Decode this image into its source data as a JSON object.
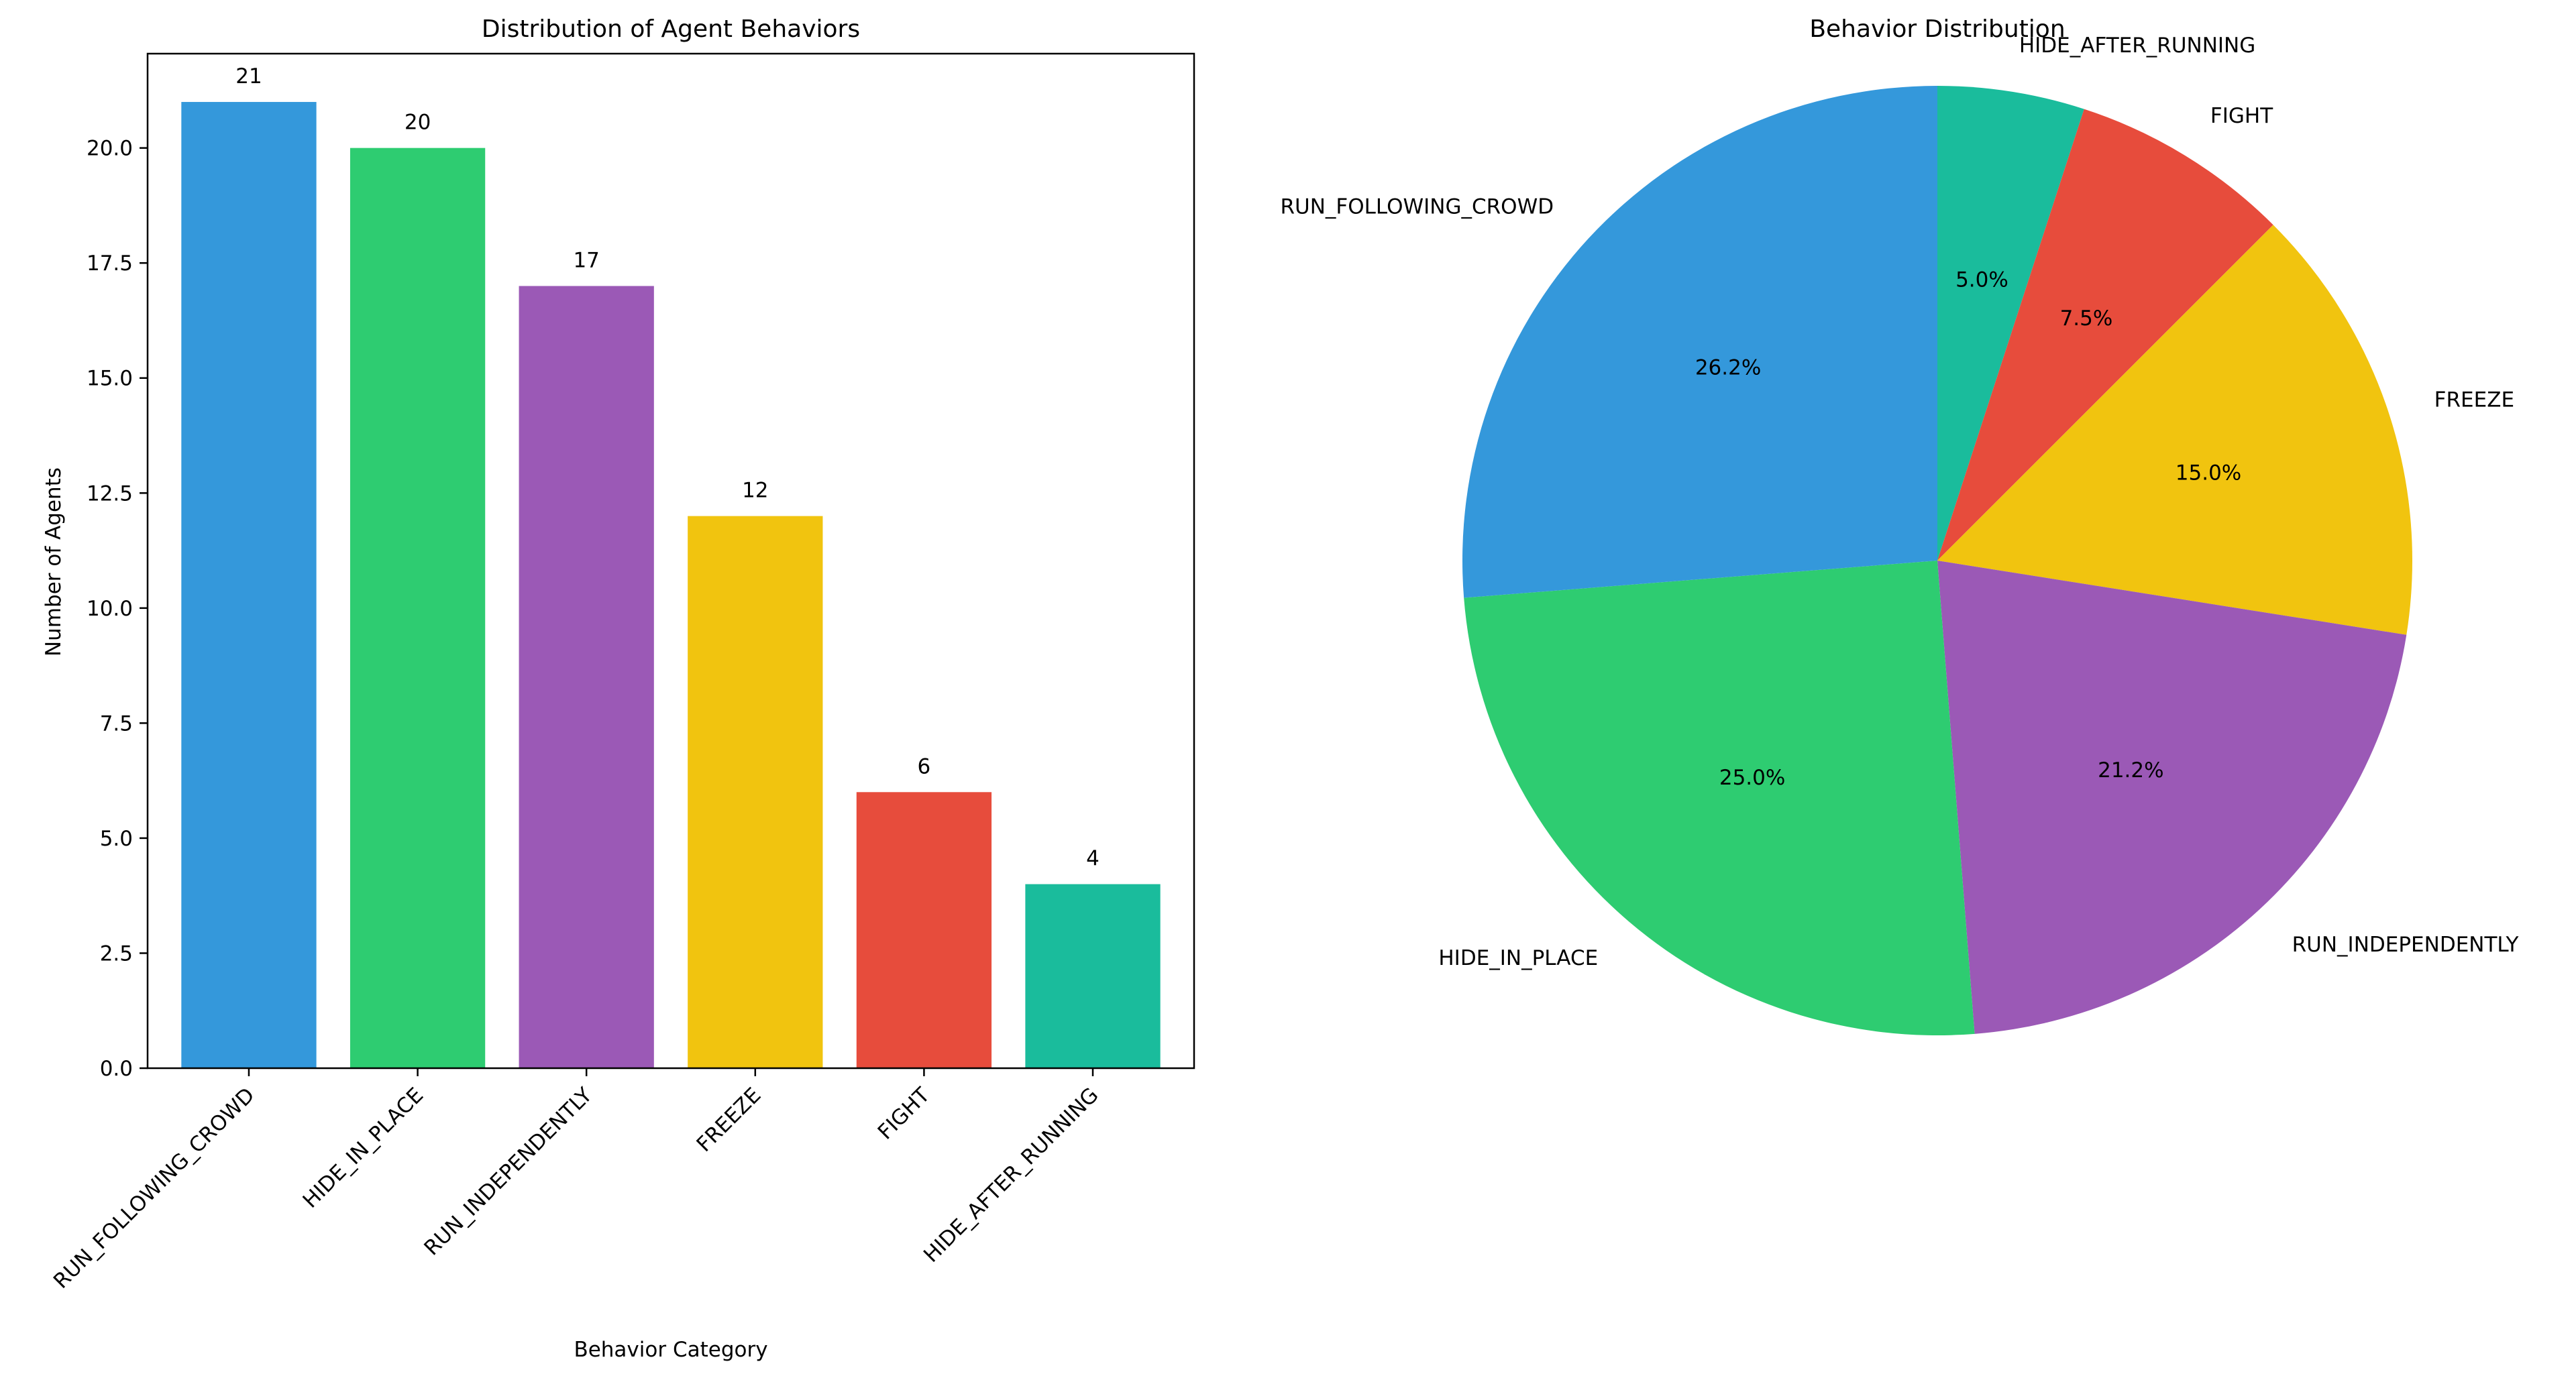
{
  "chart_data": [
    {
      "type": "bar",
      "title": "Distribution of Agent Behaviors",
      "xlabel": "Behavior Category",
      "ylabel": "Number of Agents",
      "categories": [
        "RUN_FOLLOWING_CROWD",
        "HIDE_IN_PLACE",
        "RUN_INDEPENDENTLY",
        "FREEZE",
        "FIGHT",
        "HIDE_AFTER_RUNNING"
      ],
      "values": [
        21,
        20,
        17,
        12,
        6,
        4
      ],
      "data_labels": [
        "21",
        "20",
        "17",
        "12",
        "6",
        "4"
      ],
      "colors": [
        "#3498db",
        "#2ecc71",
        "#9b59b6",
        "#f1c40f",
        "#e74c3c",
        "#1abc9c"
      ],
      "ylim": [
        0,
        22.05
      ],
      "yticks": [
        0.0,
        2.5,
        5.0,
        7.5,
        10.0,
        12.5,
        15.0,
        17.5,
        20.0
      ],
      "ytick_labels": [
        "0.0",
        "2.5",
        "5.0",
        "7.5",
        "10.0",
        "12.5",
        "15.0",
        "17.5",
        "20.0"
      ],
      "grid": false
    },
    {
      "type": "pie",
      "title": "Behavior Distribution",
      "labels": [
        "HIDE_AFTER_RUNNING",
        "FIGHT",
        "FREEZE",
        "RUN_INDEPENDENTLY",
        "HIDE_IN_PLACE",
        "RUN_FOLLOWING_CROWD"
      ],
      "values": [
        4,
        6,
        12,
        17,
        20,
        21
      ],
      "percent_labels": [
        "5.0%",
        "7.5%",
        "15.0%",
        "21.2%",
        "25.0%",
        "26.2%"
      ],
      "colors": [
        "#1abc9c",
        "#e74c3c",
        "#f1c40f",
        "#9b59b6",
        "#2ecc71",
        "#3498db"
      ],
      "start_angle_deg": 90,
      "direction": "clockwise"
    }
  ]
}
